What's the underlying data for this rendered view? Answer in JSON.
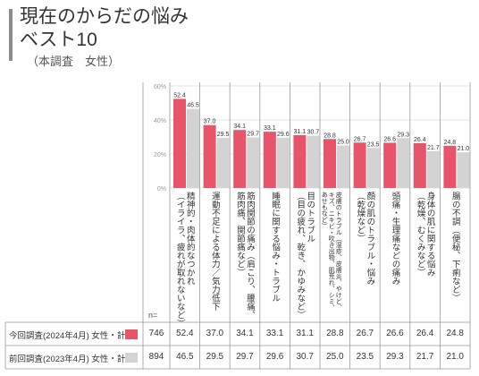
{
  "header": {
    "title_line1": "現在のからだの悩み",
    "title_line2": "ベスト10",
    "subtitle": "（本調査　女性）"
  },
  "chart_data": {
    "type": "bar",
    "ylim": [
      0,
      60
    ],
    "yticks": [
      "0%",
      "20%",
      "40%",
      "60%"
    ],
    "ytick_values": [
      0,
      20,
      40,
      60
    ],
    "categories": [
      "精神的・肉体的なつかれ\n（イライラ、疲れが取れないなど）",
      "運動不足による体力／気力低下",
      "筋肉関節の痛み（肩こり、腰痛、\n筋肉痛、関節痛など）",
      "睡眠に関する悩み・トラブル",
      "目のトラブル\n（目の疲れ、乾き、かゆみなど）",
      "皮膚のトラブル（湿疹、皮膚炎、やけど、\nキズ、ニキビ・吹き出物、肌荒れ、シミ、\nあせもなど）",
      "顔の肌のトラブル・悩み\n（乾燥など）",
      "頭痛・生理痛などの痛み",
      "身体の肌に関する悩み\n（乾燥、むくみなど）",
      "腸の不調（便秘、下痢など）"
    ],
    "series": [
      {
        "name": "今回調査(2024年4月) 女性・計",
        "n": "746",
        "color": "#e8546a",
        "values": [
          52.4,
          37.0,
          34.1,
          33.1,
          31.1,
          28.8,
          26.7,
          26.6,
          26.4,
          24.8
        ]
      },
      {
        "name": "前回調査(2023年4月) 女性・計",
        "n": "894",
        "color": "#d3d3d3",
        "values": [
          46.5,
          29.5,
          29.7,
          29.6,
          30.7,
          25.0,
          23.5,
          29.3,
          21.7,
          21.0
        ]
      }
    ],
    "n_label": "n="
  }
}
